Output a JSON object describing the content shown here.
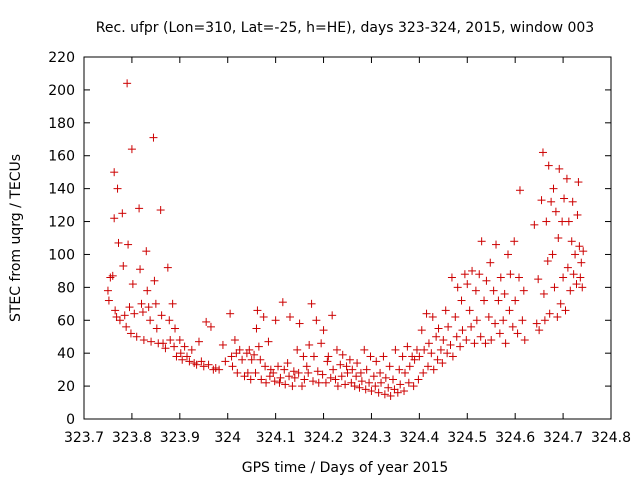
{
  "chart_data": {
    "type": "scatter",
    "title": "Rec. ufpr (Lon=310, Lat=-25, h=HE), days 323-324, 2015, window 003",
    "xlabel": "GPS time / Days of year 2015",
    "ylabel": "STEC from uqrg / TECUs",
    "xlim": [
      323.7,
      324.8
    ],
    "ylim": [
      0,
      220
    ],
    "x_ticks": [
      "323.7",
      "323.8",
      "323.9",
      "324",
      "324.1",
      "324.2",
      "324.3",
      "324.4",
      "324.5",
      "324.6",
      "324.7",
      "324.8"
    ],
    "y_ticks": [
      "0",
      "20",
      "40",
      "60",
      "80",
      "100",
      "120",
      "140",
      "160",
      "180",
      "200",
      "220"
    ],
    "grid": false,
    "marker": "+",
    "color": "#cc0000",
    "points": [
      [
        323.75,
        78
      ],
      [
        323.752,
        72
      ],
      [
        323.755,
        86
      ],
      [
        323.76,
        87
      ],
      [
        323.763,
        122
      ],
      [
        323.763,
        150
      ],
      [
        323.765,
        66
      ],
      [
        323.768,
        62
      ],
      [
        323.77,
        140
      ],
      [
        323.772,
        107
      ],
      [
        323.775,
        60
      ],
      [
        323.78,
        125
      ],
      [
        323.782,
        93
      ],
      [
        323.785,
        63
      ],
      [
        323.788,
        56
      ],
      [
        323.79,
        204
      ],
      [
        323.792,
        106
      ],
      [
        323.795,
        68
      ],
      [
        323.798,
        52
      ],
      [
        323.8,
        164
      ],
      [
        323.802,
        82
      ],
      [
        323.805,
        64
      ],
      [
        323.81,
        50
      ],
      [
        323.815,
        128
      ],
      [
        323.817,
        91
      ],
      [
        323.82,
        70
      ],
      [
        323.823,
        65
      ],
      [
        323.825,
        48
      ],
      [
        323.83,
        102
      ],
      [
        323.832,
        78
      ],
      [
        323.835,
        68
      ],
      [
        323.838,
        60
      ],
      [
        323.84,
        47
      ],
      [
        323.845,
        171
      ],
      [
        323.847,
        84
      ],
      [
        323.85,
        70
      ],
      [
        323.852,
        55
      ],
      [
        323.855,
        46
      ],
      [
        323.86,
        127
      ],
      [
        323.862,
        63
      ],
      [
        323.865,
        46
      ],
      [
        323.87,
        43
      ],
      [
        323.875,
        92
      ],
      [
        323.878,
        60
      ],
      [
        323.88,
        48
      ],
      [
        323.885,
        70
      ],
      [
        323.888,
        44
      ],
      [
        323.89,
        55
      ],
      [
        323.893,
        38
      ],
      [
        323.9,
        48
      ],
      [
        323.902,
        40
      ],
      [
        323.905,
        36
      ],
      [
        323.91,
        44
      ],
      [
        323.915,
        38
      ],
      [
        323.92,
        35
      ],
      [
        323.925,
        42
      ],
      [
        323.93,
        34
      ],
      [
        323.935,
        33
      ],
      [
        323.94,
        47
      ],
      [
        323.945,
        35
      ],
      [
        323.95,
        32
      ],
      [
        323.955,
        59
      ],
      [
        323.96,
        33
      ],
      [
        323.965,
        56
      ],
      [
        323.97,
        30
      ],
      [
        323.975,
        31
      ],
      [
        323.982,
        30
      ],
      [
        323.99,
        45
      ],
      [
        323.995,
        35
      ],
      [
        324.005,
        64
      ],
      [
        324.008,
        38
      ],
      [
        324.01,
        32
      ],
      [
        324.015,
        48
      ],
      [
        324.018,
        40
      ],
      [
        324.02,
        28
      ],
      [
        324.025,
        42
      ],
      [
        324.03,
        36
      ],
      [
        324.035,
        26
      ],
      [
        324.04,
        40
      ],
      [
        324.042,
        28
      ],
      [
        324.045,
        42
      ],
      [
        324.048,
        24
      ],
      [
        324.05,
        36
      ],
      [
        324.055,
        39
      ],
      [
        324.058,
        28
      ],
      [
        324.06,
        55
      ],
      [
        324.062,
        66
      ],
      [
        324.065,
        44
      ],
      [
        324.068,
        36
      ],
      [
        324.07,
        24
      ],
      [
        324.075,
        62
      ],
      [
        324.078,
        32
      ],
      [
        324.08,
        22
      ],
      [
        324.085,
        47
      ],
      [
        324.088,
        26
      ],
      [
        324.09,
        30
      ],
      [
        324.095,
        28
      ],
      [
        324.098,
        23
      ],
      [
        324.1,
        60
      ],
      [
        324.105,
        32
      ],
      [
        324.108,
        22
      ],
      [
        324.11,
        25
      ],
      [
        324.115,
        71
      ],
      [
        324.118,
        30
      ],
      [
        324.12,
        21
      ],
      [
        324.125,
        34
      ],
      [
        324.128,
        26
      ],
      [
        324.13,
        62
      ],
      [
        324.135,
        20
      ],
      [
        324.138,
        29
      ],
      [
        324.14,
        25
      ],
      [
        324.145,
        42
      ],
      [
        324.148,
        28
      ],
      [
        324.15,
        58
      ],
      [
        324.155,
        20
      ],
      [
        324.158,
        38
      ],
      [
        324.16,
        24
      ],
      [
        324.165,
        32
      ],
      [
        324.168,
        28
      ],
      [
        324.17,
        45
      ],
      [
        324.175,
        70
      ],
      [
        324.178,
        23
      ],
      [
        324.18,
        38
      ],
      [
        324.185,
        60
      ],
      [
        324.188,
        29
      ],
      [
        324.19,
        22
      ],
      [
        324.195,
        46
      ],
      [
        324.198,
        27
      ],
      [
        324.2,
        54
      ],
      [
        324.205,
        22
      ],
      [
        324.208,
        35
      ],
      [
        324.21,
        38
      ],
      [
        324.215,
        25
      ],
      [
        324.218,
        63
      ],
      [
        324.22,
        30
      ],
      [
        324.225,
        24
      ],
      [
        324.228,
        42
      ],
      [
        324.23,
        20
      ],
      [
        324.235,
        33
      ],
      [
        324.238,
        26
      ],
      [
        324.24,
        39
      ],
      [
        324.245,
        21
      ],
      [
        324.248,
        32
      ],
      [
        324.25,
        28
      ],
      [
        324.255,
        36
      ],
      [
        324.258,
        22
      ],
      [
        324.26,
        30
      ],
      [
        324.265,
        20
      ],
      [
        324.268,
        26
      ],
      [
        324.27,
        34
      ],
      [
        324.275,
        19
      ],
      [
        324.278,
        28
      ],
      [
        324.28,
        23
      ],
      [
        324.285,
        42
      ],
      [
        324.288,
        18
      ],
      [
        324.29,
        30
      ],
      [
        324.295,
        22
      ],
      [
        324.298,
        38
      ],
      [
        324.3,
        17
      ],
      [
        324.305,
        26
      ],
      [
        324.308,
        20
      ],
      [
        324.31,
        35
      ],
      [
        324.315,
        16
      ],
      [
        324.318,
        28
      ],
      [
        324.32,
        22
      ],
      [
        324.325,
        38
      ],
      [
        324.328,
        15
      ],
      [
        324.33,
        25
      ],
      [
        324.335,
        19
      ],
      [
        324.338,
        32
      ],
      [
        324.34,
        14
      ],
      [
        324.345,
        24
      ],
      [
        324.348,
        18
      ],
      [
        324.35,
        42
      ],
      [
        324.355,
        16
      ],
      [
        324.358,
        30
      ],
      [
        324.36,
        21
      ],
      [
        324.365,
        38
      ],
      [
        324.368,
        17
      ],
      [
        324.37,
        28
      ],
      [
        324.375,
        44
      ],
      [
        324.378,
        22
      ],
      [
        324.38,
        32
      ],
      [
        324.385,
        38
      ],
      [
        324.388,
        20
      ],
      [
        324.39,
        36
      ],
      [
        324.395,
        42
      ],
      [
        324.398,
        24
      ],
      [
        324.4,
        38
      ],
      [
        324.405,
        54
      ],
      [
        324.408,
        28
      ],
      [
        324.41,
        42
      ],
      [
        324.415,
        64
      ],
      [
        324.418,
        32
      ],
      [
        324.42,
        46
      ],
      [
        324.425,
        40
      ],
      [
        324.428,
        62
      ],
      [
        324.43,
        30
      ],
      [
        324.435,
        50
      ],
      [
        324.438,
        36
      ],
      [
        324.44,
        55
      ],
      [
        324.445,
        42
      ],
      [
        324.448,
        34
      ],
      [
        324.45,
        48
      ],
      [
        324.455,
        66
      ],
      [
        324.458,
        40
      ],
      [
        324.46,
        56
      ],
      [
        324.465,
        45
      ],
      [
        324.468,
        86
      ],
      [
        324.47,
        38
      ],
      [
        324.475,
        62
      ],
      [
        324.478,
        50
      ],
      [
        324.48,
        80
      ],
      [
        324.485,
        44
      ],
      [
        324.488,
        72
      ],
      [
        324.49,
        54
      ],
      [
        324.495,
        88
      ],
      [
        324.498,
        48
      ],
      [
        324.5,
        82
      ],
      [
        324.505,
        66
      ],
      [
        324.508,
        56
      ],
      [
        324.51,
        90
      ],
      [
        324.515,
        46
      ],
      [
        324.518,
        78
      ],
      [
        324.52,
        60
      ],
      [
        324.525,
        88
      ],
      [
        324.528,
        50
      ],
      [
        324.53,
        108
      ],
      [
        324.535,
        72
      ],
      [
        324.538,
        46
      ],
      [
        324.54,
        84
      ],
      [
        324.545,
        62
      ],
      [
        324.548,
        95
      ],
      [
        324.55,
        48
      ],
      [
        324.555,
        78
      ],
      [
        324.558,
        58
      ],
      [
        324.56,
        106
      ],
      [
        324.565,
        72
      ],
      [
        324.568,
        52
      ],
      [
        324.57,
        86
      ],
      [
        324.575,
        60
      ],
      [
        324.578,
        76
      ],
      [
        324.58,
        46
      ],
      [
        324.585,
        100
      ],
      [
        324.588,
        66
      ],
      [
        324.59,
        88
      ],
      [
        324.595,
        56
      ],
      [
        324.598,
        108
      ],
      [
        324.6,
        72
      ],
      [
        324.605,
        52
      ],
      [
        324.608,
        86
      ],
      [
        324.61,
        139
      ],
      [
        324.615,
        60
      ],
      [
        324.618,
        78
      ],
      [
        324.62,
        48
      ],
      [
        324.64,
        118
      ],
      [
        324.645,
        58
      ],
      [
        324.648,
        85
      ],
      [
        324.65,
        54
      ],
      [
        324.655,
        133
      ],
      [
        324.658,
        162
      ],
      [
        324.66,
        76
      ],
      [
        324.662,
        60
      ],
      [
        324.665,
        120
      ],
      [
        324.668,
        96
      ],
      [
        324.67,
        154
      ],
      [
        324.672,
        64
      ],
      [
        324.675,
        132
      ],
      [
        324.678,
        100
      ],
      [
        324.68,
        140
      ],
      [
        324.682,
        80
      ],
      [
        324.685,
        126
      ],
      [
        324.688,
        62
      ],
      [
        324.69,
        110
      ],
      [
        324.692,
        152
      ],
      [
        324.695,
        70
      ],
      [
        324.698,
        120
      ],
      [
        324.7,
        86
      ],
      [
        324.702,
        134
      ],
      [
        324.705,
        66
      ],
      [
        324.708,
        146
      ],
      [
        324.71,
        92
      ],
      [
        324.712,
        120
      ],
      [
        324.715,
        78
      ],
      [
        324.718,
        108
      ],
      [
        324.72,
        132
      ],
      [
        324.722,
        88
      ],
      [
        324.725,
        100
      ],
      [
        324.728,
        82
      ],
      [
        324.73,
        124
      ],
      [
        324.732,
        144
      ],
      [
        324.734,
        105
      ],
      [
        324.736,
        86
      ],
      [
        324.738,
        95
      ],
      [
        324.74,
        80
      ],
      [
        324.742,
        102
      ]
    ]
  }
}
